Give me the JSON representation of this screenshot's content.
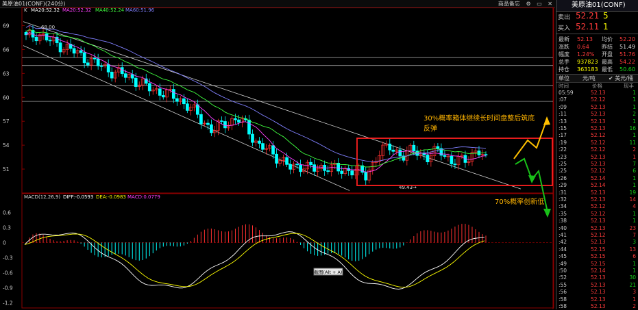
{
  "window": {
    "title": "美原油01(CONF)(240分)",
    "buttons": [
      "商品备忘",
      "⚙",
      "▭",
      "✕"
    ]
  },
  "chart_data": [
    {
      "type": "candlestick",
      "legend": {
        "k": "K",
        "ma": "MA20:52.32",
        "ma20": "MA20:52.32",
        "ma40": "MA40:52.24",
        "ma60": "MA60:51.96"
      },
      "ylim": [
        48.0,
        70.5
      ],
      "yticks": [
        51,
        54,
        57,
        60,
        63,
        66,
        69
      ],
      "hlines": [
        59.5,
        61.5,
        64.0,
        65.0
      ],
      "labels": [
        {
          "text": "68.00",
          "x": 6,
          "y": 68.0
        },
        {
          "text": "49.43→",
          "x": 108,
          "y": 49.43
        }
      ],
      "annotations": [
        {
          "text_lines": [
            "30%概率箱体继续长时间盘整后筑底",
            "反弹"
          ],
          "color": "#ffb400"
        },
        {
          "text_lines": [
            "70%概率创新低"
          ],
          "color": "#ffb400"
        }
      ],
      "colors": {
        "up": "#ff3030",
        "down": "#00ffff",
        "ma20": "#ff40ff",
        "ma40": "#40ff40",
        "ma60": "#8080ff",
        "box": "#ff2020",
        "arrow_up": "#ffc000",
        "arrow_down": "#18c018"
      },
      "ohlc_count": 135
    },
    {
      "type": "macd",
      "legend": {
        "macd": "MACD(12,26,9)",
        "diff": "DIFF:-0.0593",
        "dea": "DEA:-0.0983",
        "macd_val": "MACD:0.0779"
      },
      "ylim": [
        -1.3,
        0.85
      ],
      "yticks": [
        0.6,
        0.3,
        0,
        -0.3,
        -0.6,
        -0.9,
        -1.2
      ],
      "ytick_labels": [
        "0.6",
        "0.3",
        "0",
        "-0.3",
        "-0.6",
        "-0.9",
        "-1.2"
      ],
      "tooltip": "截图(Alt + A)"
    }
  ],
  "quote": {
    "header": "美原油01(CONF)",
    "sell_label": "卖出",
    "sell_price": "52.21",
    "sell_vol": "5",
    "buy_label": "买入",
    "buy_price": "52.11",
    "buy_vol": "1",
    "rows": [
      {
        "l1": "最新",
        "v1": "52.13",
        "l2": "均价",
        "v2": "52.20",
        "c1": "red",
        "c2": "red"
      },
      {
        "l1": "涨跌",
        "v1": "0.64",
        "l2": "昨结",
        "v2": "51.49",
        "c1": "red",
        "c2": "wht"
      },
      {
        "l1": "幅度",
        "v1": "1.24%",
        "l2": "开盘",
        "v2": "51.76",
        "c1": "red",
        "c2": "red"
      },
      {
        "l1": "总手",
        "v1": "937823",
        "l2": "最高",
        "v2": "54.22",
        "c1": "yel",
        "c2": "red"
      },
      {
        "l1": "持仓",
        "v1": "363183",
        "l2": "最低",
        "v2": "50.60",
        "c1": "yel",
        "c2": "grn"
      }
    ],
    "unit_left": "单位",
    "unit_mid": "元/吨",
    "unit_right": "✔ 美元/桶",
    "col_time": "时间",
    "col_price": "价格",
    "col_vol": "现手",
    "ticks": [
      {
        "t": "05:59",
        "p": "52.13",
        "v": "1",
        "c": "grn"
      },
      {
        "t": ":07",
        "p": "52.12",
        "v": "1",
        "c": "grn"
      },
      {
        "t": ":09",
        "p": "52.13",
        "v": "1",
        "c": "grn"
      },
      {
        "t": ":11",
        "p": "52.13",
        "v": "2",
        "c": "grn"
      },
      {
        "t": ":13",
        "p": "52.13",
        "v": "1",
        "c": "grn"
      },
      {
        "t": ":15",
        "p": "52.13",
        "v": "16",
        "c": "grn"
      },
      {
        "t": ":17",
        "p": "52.12",
        "v": "1",
        "c": "grn"
      },
      {
        "t": ":19",
        "p": "52.12",
        "v": "11",
        "c": "grn"
      },
      {
        "t": ":22",
        "p": "52.12",
        "v": "2",
        "c": "red"
      },
      {
        "t": ":23",
        "p": "52.13",
        "v": "1",
        "c": "red"
      },
      {
        "t": ":25",
        "p": "52.13",
        "v": "7",
        "c": "grn"
      },
      {
        "t": ":25",
        "p": "52.12",
        "v": "6",
        "c": "grn"
      },
      {
        "t": ":26",
        "p": "52.14",
        "v": "1",
        "c": "grn"
      },
      {
        "t": ":29",
        "p": "52.14",
        "v": "1",
        "c": "grn"
      },
      {
        "t": ":31",
        "p": "52.13",
        "v": "19",
        "c": "grn"
      },
      {
        "t": ":32",
        "p": "52.13",
        "v": "14",
        "c": "red"
      },
      {
        "t": ":34",
        "p": "52.12",
        "v": "4",
        "c": "red"
      },
      {
        "t": ":35",
        "p": "52.12",
        "v": "1",
        "c": "grn"
      },
      {
        "t": ":38",
        "p": "52.13",
        "v": "1",
        "c": "grn"
      },
      {
        "t": ":40",
        "p": "52.13",
        "v": "23",
        "c": "red"
      },
      {
        "t": ":41",
        "p": "52.12",
        "v": "7",
        "c": "red"
      },
      {
        "t": ":42",
        "p": "52.13",
        "v": "3",
        "c": "grn"
      },
      {
        "t": ":44",
        "p": "52.15",
        "v": "13",
        "c": "red"
      },
      {
        "t": ":45",
        "p": "52.15",
        "v": "6",
        "c": "red"
      },
      {
        "t": ":49",
        "p": "52.15",
        "v": "1",
        "c": "grn"
      },
      {
        "t": ":50",
        "p": "52.14",
        "v": "1",
        "c": "grn"
      },
      {
        "t": ":52",
        "p": "52.13",
        "v": "30",
        "c": "grn"
      },
      {
        "t": ":55",
        "p": "52.13",
        "v": "21",
        "c": "grn"
      },
      {
        "t": ":56",
        "p": "52.13",
        "v": "3",
        "c": "red"
      },
      {
        "t": ":58",
        "p": "52.13",
        "v": "1",
        "c": "red"
      },
      {
        "t": ":58",
        "p": "52.13",
        "v": "2",
        "c": "red"
      }
    ]
  }
}
